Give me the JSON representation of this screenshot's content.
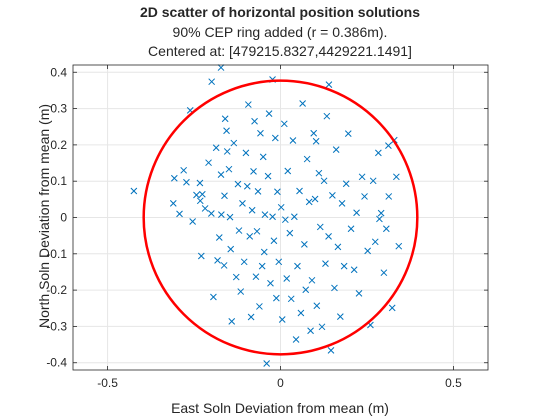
{
  "chart_data": {
    "type": "scatter",
    "title": "2D scatter of horizontal position solutions",
    "subtitle_line1": "90% CEP ring added (r = 0.386m).",
    "subtitle_line2": "Centered at: [479215.8327,4429221.1491]",
    "xlabel": "East Soln Deviation from mean (m)",
    "ylabel": "North Soln Deviation from mean (m)",
    "xlim": [
      -0.6,
      0.6
    ],
    "ylim": [
      -0.42,
      0.42
    ],
    "xticks": [
      -0.5,
      0,
      0.5
    ],
    "xtick_labels": [
      "-0.5",
      "0",
      "0.5"
    ],
    "yticks": [
      -0.4,
      -0.3,
      -0.2,
      -0.1,
      0,
      0.1,
      0.2,
      0.3,
      0.4
    ],
    "ytick_labels": [
      "-0.4",
      "-0.3",
      "-0.2",
      "-0.1",
      "0",
      "0.1",
      "0.2",
      "0.3",
      "0.4"
    ],
    "grid": true,
    "marker": "x",
    "point_color": "#0072BD",
    "ring": {
      "radius": 0.386,
      "center": [
        0,
        0
      ],
      "color": "#FF0000"
    },
    "points": [
      [
        -0.424,
        0.073
      ],
      [
        -0.307,
        0.108
      ],
      [
        -0.31,
        0.039
      ],
      [
        -0.292,
        0.01
      ],
      [
        -0.28,
        0.13
      ],
      [
        -0.272,
        0.097
      ],
      [
        -0.254,
        -0.011
      ],
      [
        -0.243,
        0.062
      ],
      [
        -0.233,
        0.095
      ],
      [
        -0.232,
        0.046
      ],
      [
        -0.229,
        -0.106
      ],
      [
        -0.226,
        0.064
      ],
      [
        -0.218,
        0.025
      ],
      [
        -0.208,
        0.151
      ],
      [
        -0.2,
        0.011
      ],
      [
        -0.194,
        -0.219
      ],
      [
        -0.186,
        0.192
      ],
      [
        -0.182,
        -0.118
      ],
      [
        -0.177,
        -0.055
      ],
      [
        -0.172,
        0.118
      ],
      [
        -0.171,
        0.008
      ],
      [
        -0.163,
        -0.132
      ],
      [
        -0.162,
        0.06
      ],
      [
        -0.16,
        0.272
      ],
      [
        -0.156,
        0.239
      ],
      [
        -0.154,
        0.182
      ],
      [
        -0.149,
        0.133
      ],
      [
        -0.146,
        0.001
      ],
      [
        -0.144,
        -0.087
      ],
      [
        -0.141,
        -0.286
      ],
      [
        -0.135,
        0.205
      ],
      [
        -0.128,
        -0.164
      ],
      [
        -0.123,
        0.092
      ],
      [
        -0.12,
        -0.036
      ],
      [
        -0.115,
        -0.204
      ],
      [
        -0.11,
        0.039
      ],
      [
        -0.105,
        -0.122
      ],
      [
        -0.1,
        0.178
      ],
      [
        -0.096,
        0.086
      ],
      [
        -0.093,
        0.311
      ],
      [
        -0.089,
        -0.052
      ],
      [
        -0.085,
        -0.274
      ],
      [
        -0.082,
        0.02
      ],
      [
        -0.078,
        0.127
      ],
      [
        -0.075,
        0.265
      ],
      [
        -0.071,
        -0.163
      ],
      [
        -0.068,
        -0.038
      ],
      [
        -0.065,
        0.072
      ],
      [
        -0.061,
        -0.245
      ],
      [
        -0.058,
        0.232
      ],
      [
        -0.053,
        -0.134
      ],
      [
        -0.05,
        0.167
      ],
      [
        -0.047,
        -0.095
      ],
      [
        -0.045,
        0.008
      ],
      [
        -0.04,
        -0.402
      ],
      [
        -0.036,
        0.114
      ],
      [
        -0.033,
        0.286
      ],
      [
        -0.029,
        -0.181
      ],
      [
        -0.023,
        0.002
      ],
      [
        -0.019,
        -0.064
      ],
      [
        -0.015,
        0.219
      ],
      [
        -0.012,
        -0.222
      ],
      [
        -0.009,
        0.071
      ],
      [
        -0.005,
        -0.122
      ],
      [
        0.002,
        0.028
      ],
      [
        0.005,
        -0.281
      ],
      [
        0.011,
        0.258
      ],
      [
        0.014,
        -0.006
      ],
      [
        0.018,
        -0.168
      ],
      [
        0.021,
        0.128
      ],
      [
        0.027,
        -0.043
      ],
      [
        0.031,
        -0.224
      ],
      [
        0.036,
        0.212
      ],
      [
        0.04,
        0.002
      ],
      [
        0.045,
        -0.336
      ],
      [
        0.049,
        -0.134
      ],
      [
        0.055,
        0.073
      ],
      [
        0.059,
        -0.263
      ],
      [
        0.064,
        0.314
      ],
      [
        0.069,
        -0.074
      ],
      [
        0.073,
        -0.199
      ],
      [
        0.077,
        0.161
      ],
      [
        0.083,
        0.043
      ],
      [
        0.087,
        -0.312
      ],
      [
        0.091,
        -0.173
      ],
      [
        0.096,
        0.232
      ],
      [
        0.1,
        0.051
      ],
      [
        0.105,
        -0.243
      ],
      [
        0.111,
        0.122
      ],
      [
        0.115,
        -0.026
      ],
      [
        0.12,
        -0.301
      ],
      [
        0.126,
        0.101
      ],
      [
        0.13,
        -0.127
      ],
      [
        0.134,
        0.279
      ],
      [
        0.139,
        -0.052
      ],
      [
        0.146,
        -0.366
      ],
      [
        0.15,
        0.061
      ],
      [
        0.156,
        -0.194
      ],
      [
        0.161,
        0.187
      ],
      [
        0.166,
        -0.081
      ],
      [
        0.173,
        -0.273
      ],
      [
        0.178,
        0.039
      ],
      [
        0.184,
        -0.134
      ],
      [
        0.19,
        0.093
      ],
      [
        0.196,
        0.231
      ],
      [
        0.204,
        -0.031
      ],
      [
        0.213,
        -0.144
      ],
      [
        0.22,
        0.013
      ],
      [
        0.227,
        -0.209
      ],
      [
        0.236,
        0.112
      ],
      [
        0.243,
        0.058
      ],
      [
        0.252,
        -0.092
      ],
      [
        0.26,
        -0.296
      ],
      [
        0.268,
        0.101
      ],
      [
        0.274,
        -0.067
      ],
      [
        0.283,
        0.178
      ],
      [
        0.291,
        0.012
      ],
      [
        0.299,
        -0.152
      ],
      [
        0.306,
        -0.031
      ],
      [
        0.313,
        0.058
      ],
      [
        0.323,
        -0.249
      ],
      [
        0.329,
        0.213
      ],
      [
        0.335,
        0.112
      ],
      [
        0.342,
        -0.079
      ],
      [
        0.14,
        0.366
      ],
      [
        -0.023,
        0.38
      ],
      [
        -0.199,
        0.374
      ],
      [
        -0.172,
        0.413
      ],
      [
        0.312,
        0.198
      ],
      [
        0.286,
        -0.004
      ],
      [
        0.103,
        0.21
      ],
      [
        -0.261,
        0.295
      ]
    ]
  }
}
